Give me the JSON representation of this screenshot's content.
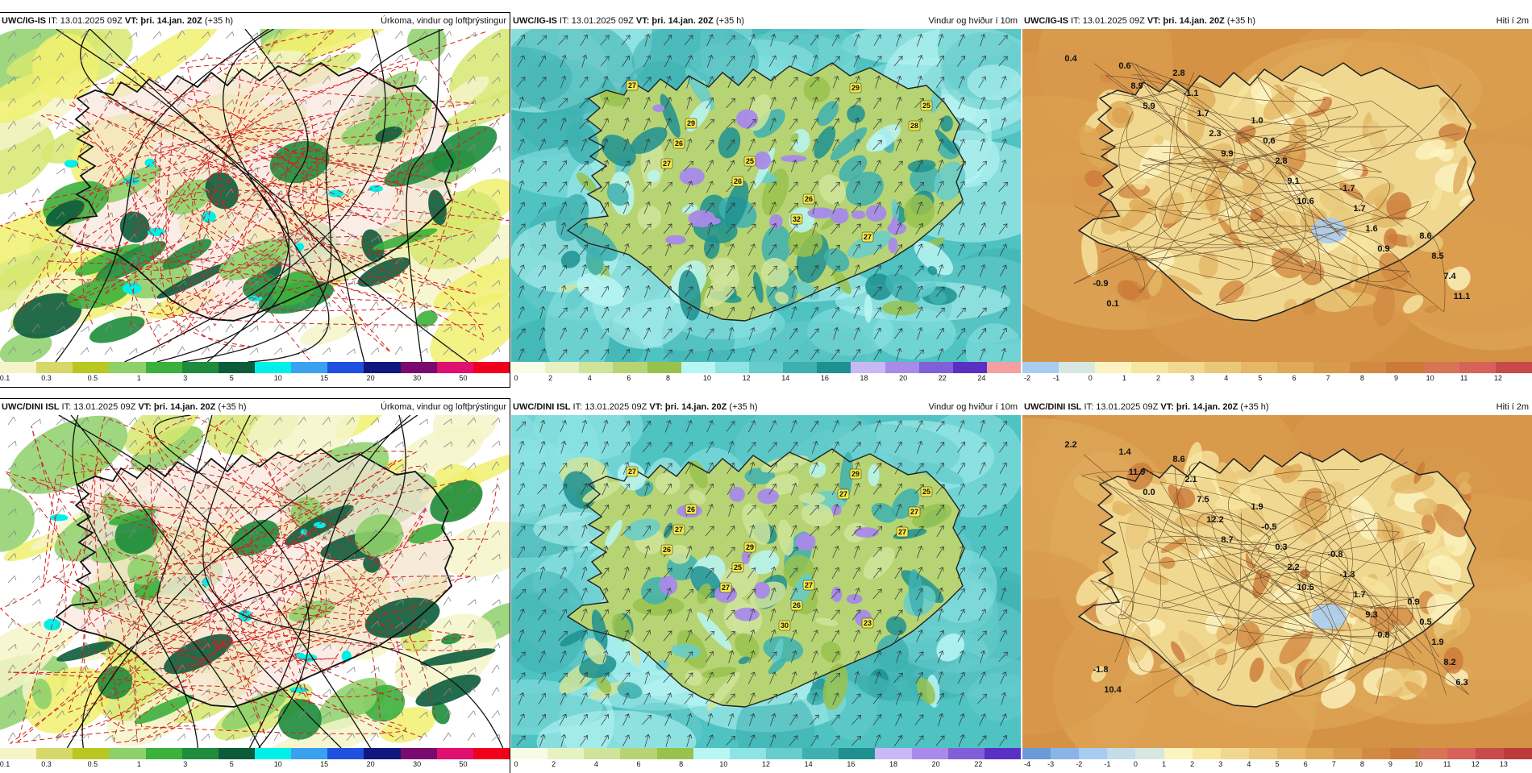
{
  "panels": [
    {
      "id": "p1",
      "boxed": true,
      "model": "UWC/IG-IS",
      "it": " IT: 13.01.2025 09Z ",
      "vt_label": "VT: ",
      "vt": "þri. 14.jan. 20Z",
      "lead": " (+35 h)",
      "title": "Úrkoma, vindur og loftþrýstingur",
      "type": "precip",
      "colorbar": {
        "colors": [
          "#f4f4c8",
          "#d6d86a",
          "#b8c820",
          "#8ed06a",
          "#3cb03c",
          "#1e8c3c",
          "#0c5c3c",
          "#00f0e8",
          "#3aa0f0",
          "#2050e0",
          "#101880",
          "#7a0a6e",
          "#e01070",
          "#f0001c"
        ],
        "ticks": [
          "0.1",
          "0.3",
          "0.5",
          "1",
          "3",
          "5",
          "10",
          "15",
          "20",
          "30",
          "50"
        ]
      }
    },
    {
      "id": "p2",
      "boxed": false,
      "model": "UWC/IG-IS",
      "it": " IT: 13.01.2025 09Z ",
      "vt_label": "VT: ",
      "vt": "þri. 14.jan. 20Z",
      "lead": " (+35 h)",
      "title": "Vindur og hviður í 10m",
      "type": "wind",
      "labels": [
        "27",
        "29",
        "25",
        "26",
        "27",
        "25",
        "26",
        "26",
        "32",
        "29",
        "28",
        "27"
      ],
      "colorbar": {
        "colors": [
          "#f7fbe8",
          "#e6f2c2",
          "#cfe49a",
          "#b6d474",
          "#98c24e",
          "#b8f6f4",
          "#8ee4e4",
          "#66cccc",
          "#3eb0b0",
          "#1e9090",
          "#c8b8f4",
          "#a88ae8",
          "#8060d6",
          "#5a30c4",
          "#f4a0a0"
        ],
        "ticks": [
          "0",
          "2",
          "4",
          "6",
          "8",
          "10",
          "12",
          "14",
          "16",
          "18",
          "20",
          "22",
          "24"
        ]
      }
    },
    {
      "id": "p3",
      "boxed": false,
      "model": "UWC/IG-IS",
      "it": " IT: 13.01.2025 09Z ",
      "vt_label": "VT: ",
      "vt": "þri. 14.jan. 20Z",
      "lead": " (+35 h)",
      "title": "Hiti í 2m",
      "type": "temp",
      "labels": [
        "0.4",
        "5.9",
        "9.9",
        "10.6",
        "0.9",
        "11.1",
        "8.9",
        "2.3",
        "9.1",
        "1.6",
        "7.4",
        "0.6",
        "1.7",
        "2.8",
        "1.7",
        "8.5",
        "0.1",
        "-1.1",
        "0.6",
        "-1.7",
        "8.6",
        "-0.9",
        "2.8",
        "1.0"
      ],
      "colorbar": {
        "colors": [
          "#a8ccf0",
          "#d6e8e0",
          "#fcf4c0",
          "#f6e6a0",
          "#f0d890",
          "#eac87a",
          "#e4b866",
          "#deaa58",
          "#d89a4c",
          "#d28a42",
          "#cc7a3a",
          "#d87456",
          "#d6625a",
          "#c84a4a"
        ],
        "ticks": [
          "-2",
          "-1",
          "0",
          "1",
          "2",
          "3",
          "4",
          "5",
          "6",
          "7",
          "8",
          "9",
          "10",
          "11",
          "12"
        ]
      }
    },
    {
      "id": "p4",
      "boxed": true,
      "model": "UWC/DINI ISL",
      "it": " IT: 13.01.2025 09Z ",
      "vt_label": "VT: ",
      "vt": "þri. 14.jan. 20Z",
      "lead": " (+35 h)",
      "title": "Úrkoma, vindur og loftþrýstingur",
      "type": "precip",
      "colorbar": {
        "colors": [
          "#f4f4c8",
          "#d6d86a",
          "#b8c820",
          "#8ed06a",
          "#3cb03c",
          "#1e8c3c",
          "#0c5c3c",
          "#00f0e8",
          "#3aa0f0",
          "#2050e0",
          "#101880",
          "#7a0a6e",
          "#e01070",
          "#f0001c"
        ],
        "ticks": [
          "0.1",
          "0.3",
          "0.5",
          "1",
          "3",
          "5",
          "10",
          "15",
          "20",
          "30",
          "50"
        ]
      }
    },
    {
      "id": "p5",
      "boxed": false,
      "model": "UWC/DINI ISL",
      "it": " IT: 13.01.2025 09Z ",
      "vt_label": "VT: ",
      "vt": "þri. 14.jan. 20Z",
      "lead": " (+35 h)",
      "title": "Vindur og hviður í 10m",
      "type": "wind",
      "labels": [
        "27",
        "26",
        "29",
        "27",
        "23",
        "25",
        "27",
        "25",
        "26",
        "29",
        "27",
        "26",
        "27",
        "30",
        "27",
        "27"
      ],
      "colorbar": {
        "colors": [
          "#f7fbe8",
          "#e6f2c2",
          "#cfe49a",
          "#b6d474",
          "#98c24e",
          "#b8f6f4",
          "#8ee4e4",
          "#66cccc",
          "#3eb0b0",
          "#1e9090",
          "#c8b8f4",
          "#a88ae8",
          "#8060d6",
          "#5a30c4"
        ],
        "ticks": [
          "0",
          "2",
          "4",
          "6",
          "8",
          "10",
          "12",
          "14",
          "16",
          "18",
          "20",
          "22"
        ]
      }
    },
    {
      "id": "p6",
      "boxed": false,
      "model": "UWC/DINI ISL",
      "it": " IT: 13.01.2025 09Z ",
      "vt_label": "VT: ",
      "vt": "þri. 14.jan. 20Z",
      "lead": " (+35 h)",
      "title": "Hiti í 2m",
      "type": "temp",
      "labels": [
        "2.2",
        "0.0",
        "8.7",
        "10.5",
        "0.8",
        "6.3",
        "11.9",
        "12.2",
        "2.2",
        "9.3",
        "8.2",
        "1.4",
        "7.5",
        "0.3",
        "1.7",
        "1.9",
        "10.4",
        "2.1",
        "-0.5",
        "-1.3",
        "0.5",
        "-1.8",
        "8.6",
        "1.9",
        "-0.8",
        "0.9"
      ],
      "colorbar": {
        "colors": [
          "#6a9ad8",
          "#8ab4e8",
          "#a8ccf0",
          "#c4dce8",
          "#d6e8e0",
          "#fcf4c0",
          "#f6e6a0",
          "#f0d890",
          "#eac87a",
          "#e4b866",
          "#deaa58",
          "#d89a4c",
          "#d28a42",
          "#cc7a3a",
          "#d87456",
          "#d6625a",
          "#c84a4a",
          "#bc3a3a"
        ],
        "ticks": [
          "-4",
          "-3",
          "-2",
          "-1",
          "0",
          "1",
          "2",
          "3",
          "4",
          "5",
          "6",
          "7",
          "8",
          "9",
          "10",
          "11",
          "12",
          "13"
        ]
      }
    }
  ]
}
